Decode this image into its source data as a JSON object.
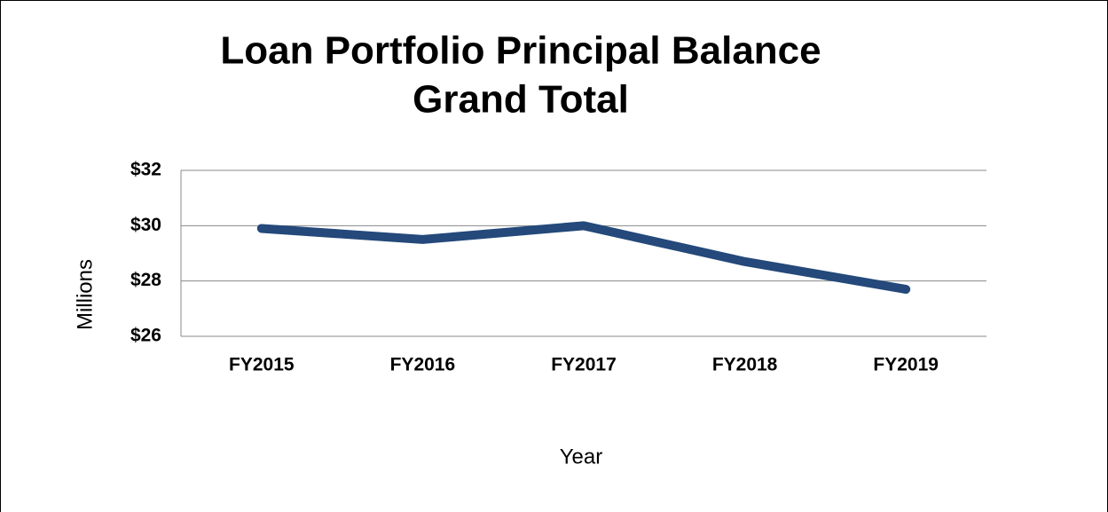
{
  "chart_data": {
    "type": "line",
    "title": [
      "Loan Portfolio Principal Balance",
      "Grand Total"
    ],
    "xlabel": "Year",
    "ylabel": "Millions",
    "categories": [
      "FY2015",
      "FY2016",
      "FY2017",
      "FY2018",
      "FY2019"
    ],
    "series": [
      {
        "name": "Grand Total",
        "color": "#24497a",
        "values": [
          29.9,
          29.5,
          30.0,
          28.7,
          27.7
        ]
      }
    ],
    "ylim": [
      26,
      32
    ],
    "yticks": [
      {
        "value": 26,
        "label": "$26"
      },
      {
        "value": 28,
        "label": "$28"
      },
      {
        "value": 30,
        "label": "$30"
      },
      {
        "value": 32,
        "label": "$32"
      }
    ],
    "grid": true,
    "legend": false
  }
}
